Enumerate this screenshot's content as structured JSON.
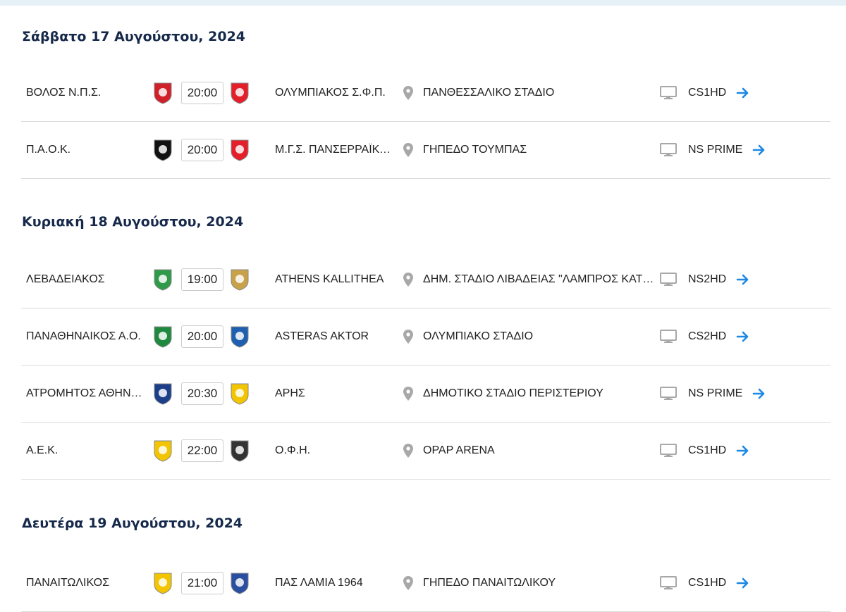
{
  "colors": {
    "heading": "#16294a",
    "arrow": "#1e88e5",
    "icon": "#a8a8a8",
    "topbar": "#e6f0f7"
  },
  "days": [
    {
      "title": "Σάββατο 17 Αυγούστου, 2024",
      "matches": [
        {
          "home": "ΒΟΛΟΣ Ν.Π.Σ.",
          "time": "20:00",
          "away": "ΟΛΥΜΠΙΑΚΟΣ Σ.Φ.Π.",
          "venue": "ΠΑΝΘΕΣΣΑΛΙΚΟ ΣΤΑΔΙΟ",
          "channel": "CS1HD",
          "home_color": "#d0202a",
          "away_color": "#e3202a"
        },
        {
          "home": "Π.Α.Ο.Κ.",
          "time": "20:00",
          "away": "Μ.Γ.Σ. ΠΑΝΣΕΡΡΑΪΚΟΣ",
          "venue": "ΓΗΠΕΔΟ ΤΟΥΜΠΑΣ",
          "channel": "NS PRIME",
          "home_color": "#111111",
          "away_color": "#e3202a"
        }
      ]
    },
    {
      "title": "Κυριακή 18 Αυγούστου, 2024",
      "matches": [
        {
          "home": "ΛΕΒΑΔΕΙΑΚΟΣ",
          "time": "19:00",
          "away": "ATHENS KALLITHEA",
          "venue": "ΔΗΜ. ΣΤΑΔΙΟ ΛΙΒΑΔΕΙΑΣ \"ΛΑΜΠΡΟΣ ΚΑΤΣΩΝΗΣ\"",
          "channel": "NS2HD",
          "home_color": "#2e9a4a",
          "away_color": "#c8a24a"
        },
        {
          "home": "ΠΑΝΑΘΗΝΑΙΚΟΣ Α.Ο.",
          "time": "20:00",
          "away": "ASTERAS AKTOR",
          "venue": "ΟΛΥΜΠΙΑΚΟ ΣΤΑΔΙΟ",
          "channel": "CS2HD",
          "home_color": "#1f8a3f",
          "away_color": "#1f5fb0"
        },
        {
          "home": "ΑΤΡΟΜΗΤΟΣ ΑΘΗΝΩΝ",
          "time": "20:30",
          "away": "ΑΡΗΣ",
          "venue": "ΔΗΜΟΤΙΚΟ ΣΤΑΔΙΟ ΠΕΡΙΣΤΕΡΙΟΥ",
          "channel": "NS PRIME",
          "home_color": "#1d3f8a",
          "away_color": "#f2c500"
        },
        {
          "home": "Α.Ε.Κ.",
          "time": "22:00",
          "away": "Ο.Φ.Η.",
          "venue": "OPAP ARENA",
          "channel": "CS1HD",
          "home_color": "#f2c500",
          "away_color": "#333333"
        }
      ]
    },
    {
      "title": "Δευτέρα 19 Αυγούστου, 2024",
      "matches": [
        {
          "home": "ΠΑΝΑΙΤΩΛΙΚΟΣ",
          "time": "21:00",
          "away": "ΠΑΣ ΛΑΜΙΑ 1964",
          "venue": "ΓΗΠΕΔΟ ΠΑΝΑΙΤΩΛΙΚΟΥ",
          "channel": "CS1HD",
          "home_color": "#f2c500",
          "away_color": "#2a4ea0"
        }
      ]
    }
  ]
}
